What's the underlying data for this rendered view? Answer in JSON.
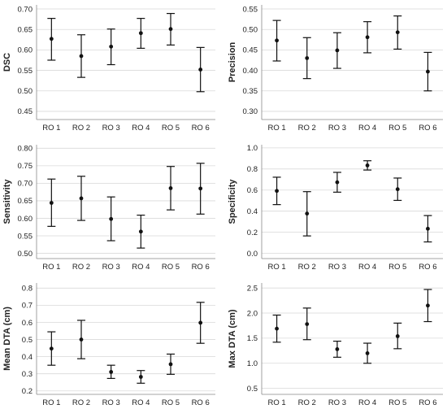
{
  "chart_data": [
    {
      "type": "scatter",
      "ylabel": "DSC",
      "categories": [
        "RO 1",
        "RO 2",
        "RO 3",
        "RO 4",
        "RO 5",
        "RO 6"
      ],
      "ylim": [
        0.43,
        0.71
      ],
      "yticks": [
        "0.45",
        "0.50",
        "0.55",
        "0.60",
        "0.65",
        "0.70"
      ],
      "values": [
        0.627,
        0.585,
        0.608,
        0.641,
        0.651,
        0.552
      ],
      "lower": [
        0.575,
        0.533,
        0.564,
        0.604,
        0.612,
        0.498
      ],
      "upper": [
        0.677,
        0.637,
        0.651,
        0.677,
        0.689,
        0.606
      ],
      "grid": true
    },
    {
      "type": "scatter",
      "ylabel": "Precision",
      "categories": [
        "RO 1",
        "RO 2",
        "RO 3",
        "RO 4",
        "RO 5",
        "RO 6"
      ],
      "ylim": [
        0.28,
        0.56
      ],
      "yticks": [
        "0.30",
        "0.35",
        "0.40",
        "0.45",
        "0.50",
        "0.55"
      ],
      "values": [
        0.473,
        0.43,
        0.449,
        0.481,
        0.493,
        0.397
      ],
      "lower": [
        0.423,
        0.38,
        0.405,
        0.443,
        0.452,
        0.35
      ],
      "upper": [
        0.522,
        0.48,
        0.492,
        0.519,
        0.533,
        0.444
      ],
      "grid": true
    },
    {
      "type": "scatter",
      "ylabel": "Sensitivity",
      "categories": [
        "RO 1",
        "RO 2",
        "RO 3",
        "RO 4",
        "RO 5",
        "RO 6"
      ],
      "ylim": [
        0.485,
        0.81
      ],
      "yticks": [
        "0.50",
        "0.55",
        "0.60",
        "0.65",
        "0.70",
        "0.75",
        "0.80"
      ],
      "values": [
        0.644,
        0.657,
        0.598,
        0.562,
        0.686,
        0.685
      ],
      "lower": [
        0.577,
        0.594,
        0.536,
        0.515,
        0.624,
        0.612
      ],
      "upper": [
        0.712,
        0.72,
        0.661,
        0.609,
        0.748,
        0.757
      ],
      "grid": true
    },
    {
      "type": "scatter",
      "ylabel": "Specificity",
      "categories": [
        "RO 1",
        "RO 2",
        "RO 3",
        "RO 4",
        "RO 5",
        "RO 6"
      ],
      "ylim": [
        -0.05,
        1.03
      ],
      "yticks": [
        "0.0",
        "0.2",
        "0.4",
        "0.6",
        "0.8",
        "1.0"
      ],
      "values": [
        0.592,
        0.377,
        0.674,
        0.834,
        0.608,
        0.233
      ],
      "lower": [
        0.462,
        0.165,
        0.58,
        0.79,
        0.502,
        0.108
      ],
      "upper": [
        0.722,
        0.585,
        0.768,
        0.878,
        0.714,
        0.358
      ],
      "grid": true
    },
    {
      "type": "scatter",
      "ylabel": "Mean DTA (cm)",
      "categories": [
        "RO 1",
        "RO 2",
        "RO 3",
        "RO 4",
        "RO 5",
        "RO 6"
      ],
      "ylim": [
        0.18,
        0.83
      ],
      "yticks": [
        "0.2",
        "0.3",
        "0.4",
        "0.5",
        "0.6",
        "0.7",
        "0.8"
      ],
      "values": [
        0.447,
        0.5,
        0.311,
        0.282,
        0.356,
        0.598
      ],
      "lower": [
        0.35,
        0.388,
        0.273,
        0.245,
        0.297,
        0.478
      ],
      "upper": [
        0.545,
        0.612,
        0.35,
        0.319,
        0.415,
        0.717
      ],
      "grid": true
    },
    {
      "type": "scatter",
      "ylabel": "Max DTA (cm)",
      "categories": [
        "RO 1",
        "RO 2",
        "RO 3",
        "RO 4",
        "RO 5",
        "RO 6"
      ],
      "ylim": [
        0.38,
        2.6
      ],
      "yticks": [
        "0.5",
        "1.0",
        "1.5",
        "2.0",
        "2.5"
      ],
      "values": [
        1.69,
        1.78,
        1.28,
        1.2,
        1.54,
        2.15
      ],
      "lower": [
        1.42,
        1.47,
        1.12,
        1.0,
        1.29,
        1.83
      ],
      "upper": [
        1.96,
        2.1,
        1.44,
        1.4,
        1.8,
        2.47
      ],
      "grid": true
    }
  ]
}
